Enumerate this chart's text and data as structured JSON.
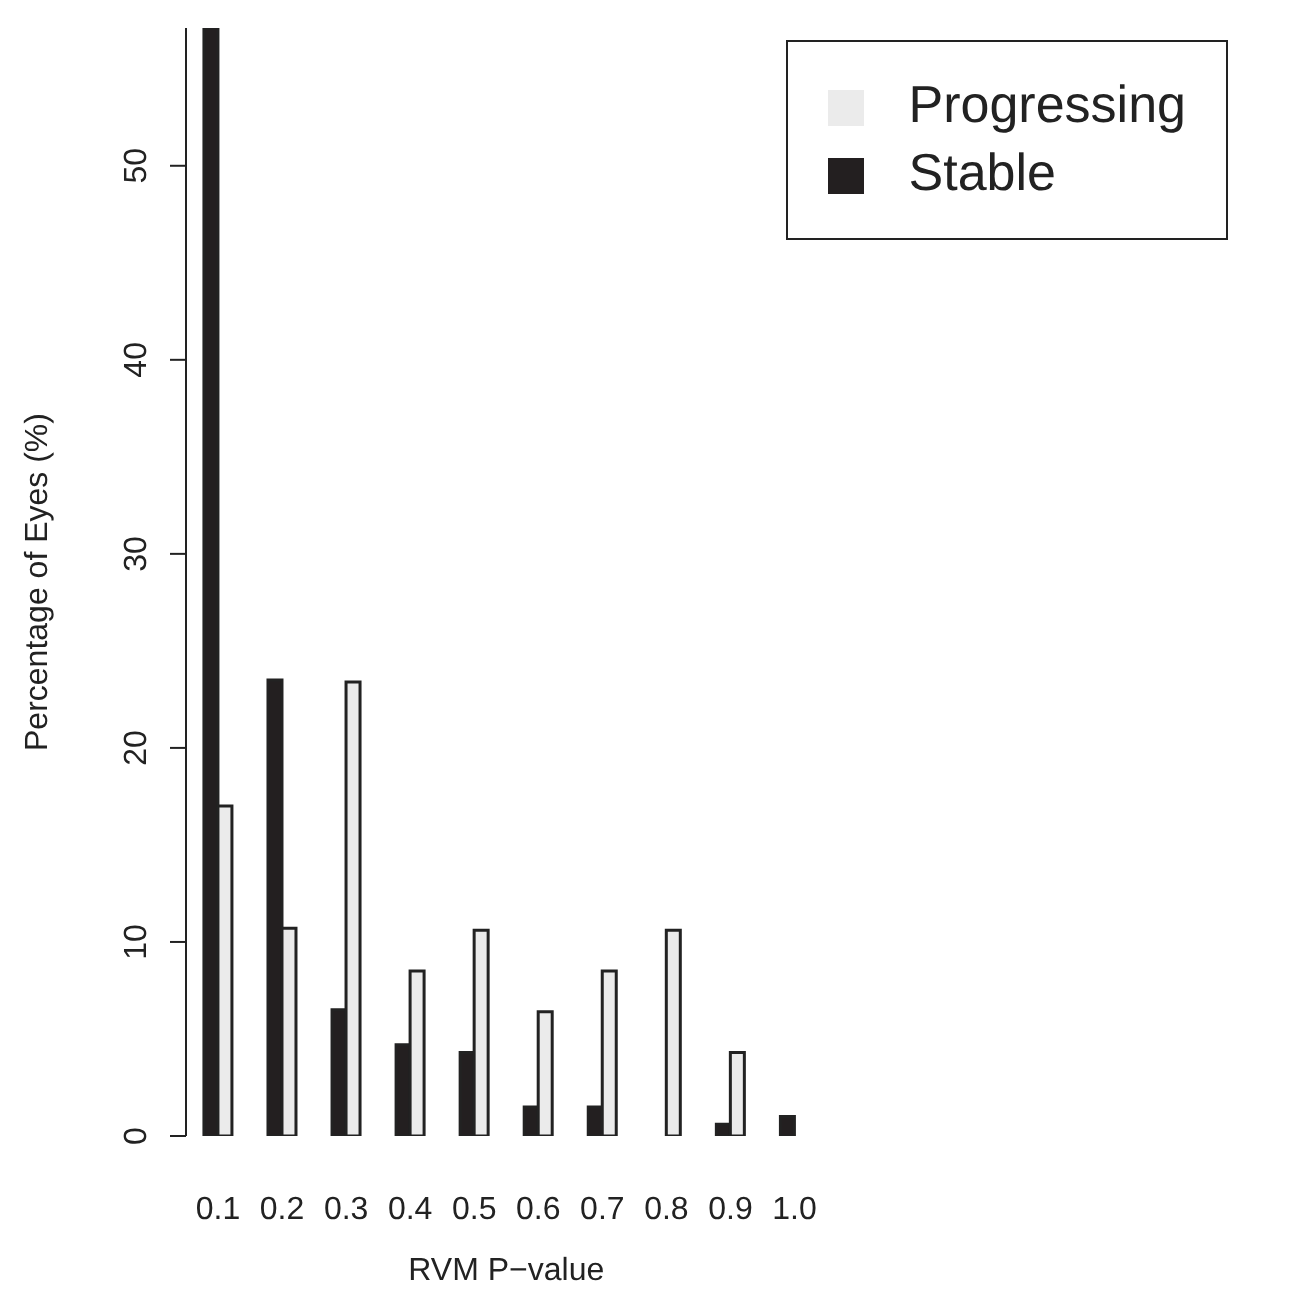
{
  "chart_data": {
    "type": "bar",
    "xlabel": "RVM P−value",
    "ylabel": "Percentage of Eyes (%)",
    "categories": [
      "0.1",
      "0.2",
      "0.3",
      "0.4",
      "0.5",
      "0.6",
      "0.7",
      "0.8",
      "0.9",
      "1.0"
    ],
    "series": [
      {
        "name": "Stable",
        "color": "#231f20",
        "values": [
          57.1,
          23.5,
          6.5,
          4.7,
          4.3,
          1.5,
          1.5,
          0,
          0.6,
          1.0
        ]
      },
      {
        "name": "Progressing",
        "color": "#ebebeb",
        "values": [
          17.0,
          10.7,
          23.4,
          8.5,
          10.6,
          6.4,
          8.5,
          10.6,
          4.3,
          0
        ]
      }
    ],
    "ylim": [
      0,
      57.1
    ],
    "yticks": [
      0,
      10,
      20,
      30,
      40,
      50
    ],
    "grid": false,
    "legend": "top right"
  }
}
